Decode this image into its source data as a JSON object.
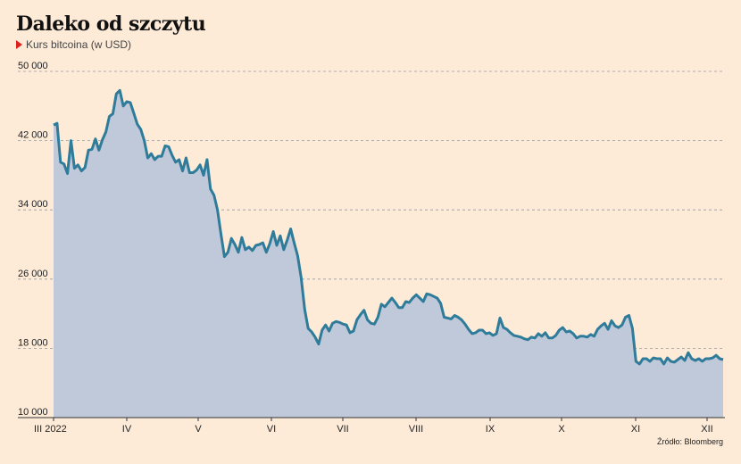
{
  "title": "Daleko od szczytu",
  "subtitle": "Kurs bitcoina (w USD)",
  "source": "Źródło: Bloomberg",
  "colors": {
    "background": "#fdebd8",
    "line": "#2e7b9a",
    "area": "#c0c9d9",
    "marker": "#e0201b"
  },
  "chart_data": {
    "type": "area",
    "title": "Daleko od szczytu",
    "ylabel": "Kurs bitcoina (w USD)",
    "xlabel": "",
    "ylim": [
      10000,
      50000
    ],
    "y_ticks": [
      10000,
      18000,
      26000,
      34000,
      42000,
      50000
    ],
    "y_tick_labels": [
      "10 000",
      "18 000",
      "26 000",
      "34 000",
      "42 000",
      "50 000"
    ],
    "x_tick_labels": [
      "III 2022",
      "IV",
      "V",
      "VI",
      "VII",
      "VIII",
      "IX",
      "X",
      "XI",
      "XII"
    ],
    "grid": true,
    "series": [
      {
        "values": [
          43800,
          44000,
          39500,
          39300,
          38200,
          42000,
          38800,
          39200,
          38500,
          38900,
          40900,
          41000,
          42200,
          40900,
          42100,
          43000,
          44800,
          45100,
          47400,
          47800,
          46000,
          46500,
          46400,
          45200,
          43900,
          43300,
          42000,
          40000,
          40500,
          39800,
          40200,
          40200,
          41400,
          41300,
          40300,
          39500,
          39800,
          38500,
          40000,
          38300,
          38300,
          38600,
          39200,
          38000,
          39800,
          36400,
          35700,
          34000,
          31200,
          28600,
          29100,
          30700,
          30000,
          29100,
          30800,
          29400,
          29700,
          29300,
          29900,
          30000,
          30200,
          29100,
          30100,
          31500,
          29900,
          31000,
          29400,
          30500,
          31800,
          30200,
          28700,
          26200,
          22500,
          20300,
          19900,
          19300,
          18500,
          20100,
          20700,
          20000,
          20900,
          21100,
          21000,
          20800,
          20700,
          19800,
          20000,
          21300,
          21900,
          22400,
          21300,
          20900,
          20800,
          21600,
          23100,
          22800,
          23300,
          23800,
          23300,
          22700,
          22700,
          23400,
          23300,
          23800,
          24200,
          23800,
          23400,
          24300,
          24200,
          24000,
          23800,
          23200,
          21600,
          21500,
          21400,
          21800,
          21600,
          21300,
          20800,
          20200,
          19700,
          19800,
          20100,
          20100,
          19700,
          19800,
          19500,
          19700,
          21500,
          20400,
          20200,
          19800,
          19500,
          19400,
          19300,
          19100,
          19000,
          19300,
          19200,
          19700,
          19400,
          19800,
          19200,
          19200,
          19500,
          20100,
          20400,
          19900,
          20000,
          19700,
          19200,
          19400,
          19400,
          19300,
          19600,
          19400,
          20200,
          20600,
          20900,
          20200,
          21200,
          20600,
          20400,
          20700,
          21600,
          21800,
          20300,
          16500,
          16200,
          16800,
          16800,
          16500,
          16900,
          16800,
          16800,
          16200,
          16900,
          16500,
          16400,
          16700,
          17000,
          16600,
          17500,
          16800,
          16600,
          16800,
          16500,
          16800,
          16800,
          16900,
          17200,
          16800,
          16700
        ]
      }
    ]
  }
}
